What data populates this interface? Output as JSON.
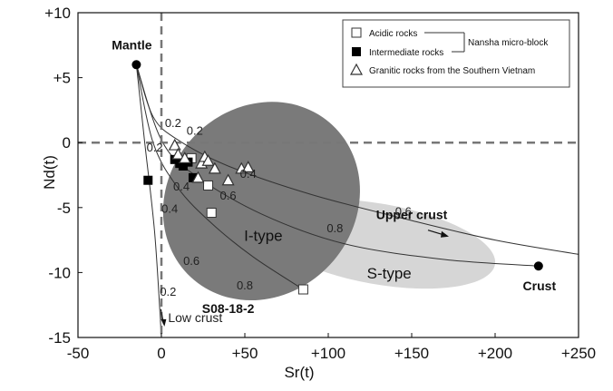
{
  "chart_data": {
    "type": "scatter",
    "title": "",
    "xlabel": "Sr(t)",
    "ylabel": "Nd(t)",
    "xlim": [
      -50,
      250
    ],
    "ylim": [
      -15,
      10
    ],
    "x_ticks": [
      "-50",
      "0",
      "+50",
      "+100",
      "+150",
      "+200",
      "+250"
    ],
    "y_ticks": [
      "-15",
      "-10",
      "-5",
      "0",
      "+5",
      "+10"
    ],
    "x_tick_values": [
      -50,
      0,
      50,
      100,
      150,
      200,
      250
    ],
    "y_tick_values": [
      -15,
      -10,
      -5,
      0,
      5,
      10
    ],
    "reference_lines": {
      "x": 0,
      "y": 0,
      "style": "dashed"
    },
    "endmembers": [
      {
        "label": "Mantle",
        "x": -15,
        "y": 6
      },
      {
        "label": "Crust",
        "x": 226,
        "y": -9.5
      }
    ],
    "mixing_curves": [
      {
        "name": "upper",
        "points": [
          [
            -15,
            6
          ],
          [
            -5,
            2
          ],
          [
            10,
            0.2
          ],
          [
            40,
            -1.8
          ],
          [
            90,
            -4
          ],
          [
            150,
            -6
          ],
          [
            200,
            -7.5
          ],
          [
            250,
            -8.6
          ]
        ]
      },
      {
        "name": "middle",
        "points": [
          [
            -15,
            6
          ],
          [
            0,
            0.2
          ],
          [
            20,
            -2.5
          ],
          [
            60,
            -5.5
          ],
          [
            110,
            -7.8
          ],
          [
            170,
            -9
          ],
          [
            226,
            -9.5
          ]
        ]
      },
      {
        "name": "s08",
        "points": [
          [
            -15,
            6
          ],
          [
            -5,
            0
          ],
          [
            10,
            -3.5
          ],
          [
            30,
            -6.2
          ],
          [
            55,
            -8.8
          ],
          [
            85,
            -11.3
          ]
        ]
      },
      {
        "name": "low",
        "points": [
          [
            -15,
            6
          ],
          [
            -10,
            0
          ],
          [
            -4,
            -7
          ],
          [
            0,
            -15
          ]
        ]
      }
    ],
    "regions": [
      {
        "label": "I-type",
        "cx": 60,
        "cy": -4.5,
        "rx": 56,
        "ry": 8,
        "angle_deg": 43
      },
      {
        "label": "S-type",
        "cx": 130,
        "cy": -7.8,
        "rx": 71,
        "ry": 3.1,
        "angle_deg": 10
      }
    ],
    "annotations": [
      {
        "text": "0.2",
        "x": 7,
        "y": 1.2
      },
      {
        "text": "0.2",
        "x": 20,
        "y": 0.6
      },
      {
        "text": "0.2",
        "x": -4,
        "y": -0.7
      },
      {
        "text": "0.2",
        "x": 4,
        "y": -11.8
      },
      {
        "text": "0.4",
        "x": 52,
        "y": -2.7
      },
      {
        "text": "0.4",
        "x": 12,
        "y": -3.7
      },
      {
        "text": "0.4",
        "x": 5,
        "y": -5.4
      },
      {
        "text": "0.6",
        "x": 40,
        "y": -4.4
      },
      {
        "text": "0.6",
        "x": 145,
        "y": -5.6
      },
      {
        "text": "0.6",
        "x": 18,
        "y": -9.4
      },
      {
        "text": "0.8",
        "x": 104,
        "y": -6.9
      },
      {
        "text": "0.8",
        "x": 50,
        "y": -11.3
      },
      {
        "text": "Upper crust",
        "x": 150,
        "y": -5.9
      },
      {
        "text": "Low crust",
        "x": 4,
        "y": -13.8
      },
      {
        "text": "S08-18-2",
        "x": 40,
        "y": -13.1
      }
    ],
    "legend": {
      "position": "top-right",
      "entries": [
        {
          "label": "Acidic rocks",
          "marker": "open-square"
        },
        {
          "label": "Intermediate rocks",
          "marker": "filled-square"
        },
        {
          "label": "Granitic rocks from the Southern Vietnam",
          "marker": "open-triangle"
        }
      ],
      "group_label": "Nansha micro-block"
    },
    "series": [
      {
        "name": "Acidic rocks",
        "marker": "open-square",
        "points": [
          [
            18,
            -1.2
          ],
          [
            28,
            -3.3
          ],
          [
            30,
            -5.4
          ],
          [
            85,
            -11.3
          ]
        ]
      },
      {
        "name": "Intermediate rocks",
        "marker": "filled-square",
        "points": [
          [
            -8,
            -2.9
          ],
          [
            8,
            -1.3
          ],
          [
            11,
            -1.6
          ],
          [
            13,
            -1.8
          ],
          [
            16,
            -1.5
          ],
          [
            19,
            -2.7
          ]
        ]
      },
      {
        "name": "Granitic rocks from the Southern Vietnam",
        "marker": "open-triangle",
        "points": [
          [
            8,
            -0.2
          ],
          [
            10,
            -0.9
          ],
          [
            14,
            -1.2
          ],
          [
            22,
            -2.7
          ],
          [
            24,
            -1.6
          ],
          [
            26,
            -1.1
          ],
          [
            28,
            -1.4
          ],
          [
            32,
            -2
          ],
          [
            40,
            -2.9
          ],
          [
            48,
            -2
          ],
          [
            52,
            -1.9
          ]
        ]
      }
    ]
  }
}
